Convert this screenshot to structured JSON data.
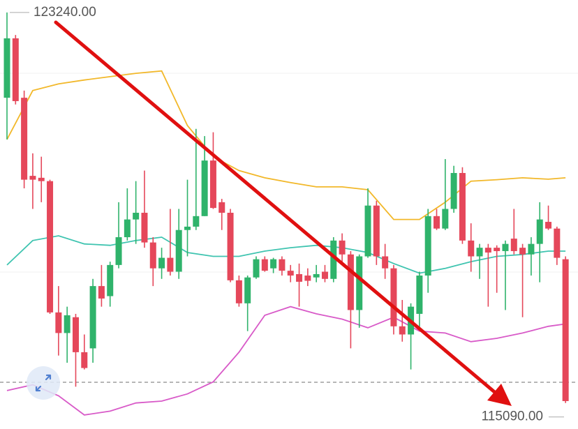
{
  "chart_data": {
    "type": "candlestick",
    "ylim": [
      114620,
      123500
    ],
    "up_color": "#2fb36b",
    "down_color": "#e5475a",
    "candles": [
      [
        121460,
        123240,
        120590,
        122700
      ],
      [
        122700,
        122770,
        121320,
        121390
      ],
      [
        121460,
        121610,
        119570,
        119750
      ],
      [
        119830,
        120300,
        119140,
        119750
      ],
      [
        119790,
        120230,
        119280,
        119720
      ],
      [
        119720,
        119750,
        116950,
        116980
      ],
      [
        116980,
        117530,
        116080,
        116550
      ],
      [
        116550,
        117100,
        115930,
        116920
      ],
      [
        116880,
        116950,
        115430,
        116150
      ],
      [
        116150,
        116520,
        115790,
        115820
      ],
      [
        116230,
        117680,
        115930,
        117530
      ],
      [
        117530,
        117970,
        117100,
        117270
      ],
      [
        117320,
        118040,
        117100,
        117970
      ],
      [
        117970,
        119280,
        117900,
        118550
      ],
      [
        118550,
        119570,
        118480,
        118920
      ],
      [
        118920,
        119720,
        118410,
        119060
      ],
      [
        119060,
        119940,
        118330,
        118440
      ],
      [
        118440,
        118550,
        117530,
        117900
      ],
      [
        117900,
        118330,
        117680,
        118120
      ],
      [
        118120,
        119140,
        117750,
        117830
      ],
      [
        117830,
        119140,
        117680,
        118700
      ],
      [
        118700,
        119750,
        118150,
        118770
      ],
      [
        118770,
        120810,
        118700,
        118990
      ],
      [
        118990,
        120660,
        118990,
        120150
      ],
      [
        120150,
        120740,
        119140,
        119160
      ],
      [
        119280,
        119350,
        118700,
        119060
      ],
      [
        119060,
        119140,
        117610,
        117650
      ],
      [
        117650,
        117750,
        117100,
        117170
      ],
      [
        117170,
        117750,
        116590,
        117710
      ],
      [
        117710,
        118150,
        117680,
        118090
      ],
      [
        118090,
        118150,
        117830,
        117850
      ],
      [
        117900,
        118120,
        117800,
        118090
      ],
      [
        118090,
        118150,
        117750,
        117850
      ],
      [
        117850,
        117970,
        117610,
        117750
      ],
      [
        117780,
        118000,
        117100,
        117620
      ],
      [
        117750,
        117900,
        117530,
        117640
      ],
      [
        117710,
        117970,
        117610,
        117780
      ],
      [
        117830,
        117970,
        117610,
        117680
      ],
      [
        117680,
        118550,
        117610,
        118480
      ],
      [
        118480,
        118630,
        117970,
        118190
      ],
      [
        118190,
        118260,
        116230,
        117030
      ],
      [
        117030,
        118190,
        116660,
        118150
      ],
      [
        118150,
        119570,
        118120,
        119210
      ],
      [
        119210,
        119310,
        117970,
        118150
      ],
      [
        118150,
        118410,
        117680,
        117900
      ],
      [
        117900,
        117970,
        116520,
        116690
      ],
      [
        116690,
        117240,
        116370,
        116520
      ],
      [
        116520,
        117170,
        115790,
        117100
      ],
      [
        116950,
        117830,
        116660,
        117750
      ],
      [
        117750,
        119140,
        117390,
        118990
      ],
      [
        118990,
        119140,
        118700,
        118730
      ],
      [
        118730,
        120180,
        118700,
        119140
      ],
      [
        119140,
        120040,
        119060,
        119890
      ],
      [
        119890,
        120010,
        118410,
        118480
      ],
      [
        118480,
        118840,
        117830,
        118150
      ],
      [
        118150,
        118410,
        117680,
        118330
      ],
      [
        118330,
        118410,
        117100,
        118230
      ],
      [
        118330,
        118380,
        117390,
        118260
      ],
      [
        118260,
        118480,
        117030,
        118410
      ],
      [
        118520,
        119140,
        118190,
        118260
      ],
      [
        118330,
        118410,
        116880,
        118190
      ],
      [
        118190,
        118550,
        117750,
        118410
      ],
      [
        118410,
        119280,
        117610,
        118920
      ],
      [
        118870,
        119210,
        118700,
        118730
      ],
      [
        118730,
        118770,
        117970,
        118120
      ],
      [
        118090,
        118150,
        115090,
        115130
      ]
    ],
    "series": [
      {
        "color": "#f2b82a",
        "x": [
          0,
          3,
          6,
          9,
          12,
          15,
          18,
          21,
          24,
          27,
          30,
          33,
          36,
          39,
          42,
          45,
          48,
          51,
          54,
          57,
          60,
          63,
          65
        ],
        "values": [
          120590,
          121610,
          121750,
          121830,
          121900,
          121970,
          122020,
          120880,
          120230,
          119940,
          119790,
          119690,
          119600,
          119600,
          119540,
          118920,
          118920,
          119280,
          119720,
          119750,
          119790,
          119760,
          119790
        ]
      },
      {
        "color": "#3fc4b0",
        "x": [
          0,
          3,
          6,
          9,
          12,
          15,
          18,
          21,
          24,
          27,
          30,
          33,
          36,
          39,
          42,
          45,
          48,
          51,
          54,
          57,
          60,
          63,
          65
        ],
        "values": [
          117970,
          118480,
          118580,
          118410,
          118380,
          118480,
          118550,
          118230,
          118150,
          118150,
          118260,
          118330,
          118380,
          118330,
          118230,
          118000,
          117800,
          117900,
          118040,
          118150,
          118190,
          118260,
          118260
        ]
      },
      {
        "color": "#d85ac8",
        "x": [
          0,
          3,
          6,
          9,
          12,
          15,
          18,
          21,
          24,
          27,
          30,
          33,
          36,
          39,
          42,
          45,
          48,
          51,
          54,
          57,
          60,
          63,
          65
        ],
        "values": [
          115350,
          115470,
          115240,
          114840,
          114920,
          115090,
          115130,
          115280,
          115530,
          116150,
          116920,
          117100,
          116950,
          116840,
          116660,
          116880,
          116590,
          116550,
          116370,
          116440,
          116550,
          116690,
          116740
        ]
      }
    ],
    "annotations": [
      {
        "value": 123240,
        "label": "123240.00"
      },
      {
        "value": 115090,
        "label": "115090.00"
      }
    ]
  }
}
